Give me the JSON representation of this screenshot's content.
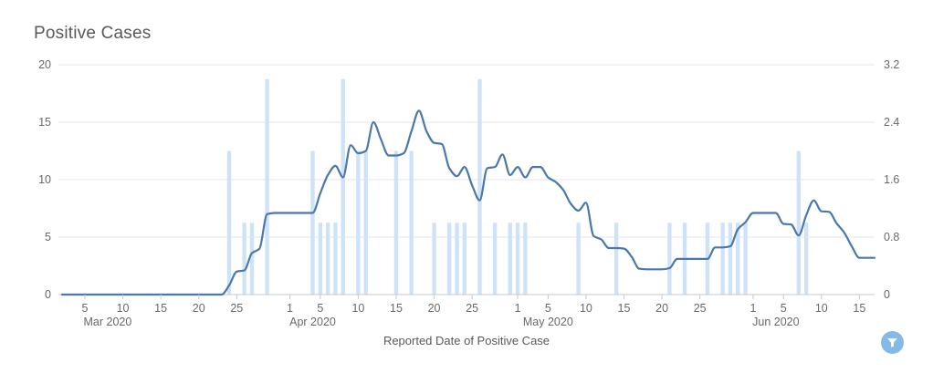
{
  "chart_data": {
    "type": "line",
    "title": "Positive Cases",
    "xlabel": "Reported Date of Positive Case",
    "x_start_date": "2020-03-02",
    "x_end_date": "2020-06-17",
    "x_frequency": "daily",
    "grid": "horizontal",
    "legend": "none",
    "left_axis": {
      "lim": [
        0,
        20
      ],
      "ticks": [
        0,
        5,
        10,
        15,
        20
      ]
    },
    "right_axis": {
      "lim": [
        0,
        3.2
      ],
      "ticks": [
        0,
        0.8,
        1.6,
        2.4,
        3.2
      ]
    },
    "x_ticks": [
      {
        "date": "2020-03-05",
        "label": "5"
      },
      {
        "date": "2020-03-10",
        "label": "10"
      },
      {
        "date": "2020-03-15",
        "label": "15"
      },
      {
        "date": "2020-03-20",
        "label": "20"
      },
      {
        "date": "2020-03-25",
        "label": "25"
      },
      {
        "date": "2020-04-01",
        "label": "1"
      },
      {
        "date": "2020-04-05",
        "label": "5"
      },
      {
        "date": "2020-04-10",
        "label": "10"
      },
      {
        "date": "2020-04-15",
        "label": "15"
      },
      {
        "date": "2020-04-20",
        "label": "20"
      },
      {
        "date": "2020-04-25",
        "label": "25"
      },
      {
        "date": "2020-05-01",
        "label": "1"
      },
      {
        "date": "2020-05-05",
        "label": "5"
      },
      {
        "date": "2020-05-10",
        "label": "10"
      },
      {
        "date": "2020-05-15",
        "label": "15"
      },
      {
        "date": "2020-05-20",
        "label": "20"
      },
      {
        "date": "2020-05-25",
        "label": "25"
      },
      {
        "date": "2020-06-01",
        "label": "1"
      },
      {
        "date": "2020-06-05",
        "label": "5"
      },
      {
        "date": "2020-06-10",
        "label": "10"
      },
      {
        "date": "2020-06-15",
        "label": "15"
      }
    ],
    "month_labels": [
      {
        "label": "Mar 2020",
        "center_date": "2020-03-08"
      },
      {
        "label": "Apr 2020",
        "center_date": "2020-04-04"
      },
      {
        "label": "May 2020",
        "center_date": "2020-05-05"
      },
      {
        "label": "Jun 2020",
        "center_date": "2020-06-04"
      }
    ],
    "series": [
      {
        "name": "positive-cases-trend-line",
        "type": "line",
        "axis": "left",
        "daily_values": [
          0,
          0,
          0,
          0,
          0,
          0,
          0,
          0,
          0,
          0,
          0,
          0,
          0,
          0,
          0,
          0,
          0,
          0,
          0,
          0,
          0,
          0,
          0.8,
          2,
          2.1,
          3.6,
          4,
          7,
          7.1,
          7.1,
          7.1,
          7.1,
          7.1,
          7.1,
          8.8,
          10.4,
          11.2,
          10.2,
          13,
          12.3,
          12.5,
          15,
          13.5,
          12.1,
          12.1,
          12.3,
          14.2,
          16,
          14.2,
          13.2,
          13.1,
          11,
          10.3,
          11.1,
          9.5,
          8.2,
          11,
          11.1,
          12.2,
          10.4,
          11.1,
          10.2,
          11.1,
          11.1,
          10.2,
          9.8,
          9.1,
          7.9,
          7.3,
          8,
          5.1,
          4.8,
          4.05,
          4.05,
          4,
          3.3,
          2.25,
          2.2,
          2.2,
          2.2,
          2.3,
          3.1,
          3.1,
          3.1,
          3.1,
          3.1,
          4.1,
          4.1,
          4.2,
          5.7,
          6.3,
          7.1,
          7.1,
          7.1,
          7.1,
          6.15,
          6.1,
          5.15,
          6.9,
          8.2,
          7.25,
          7.2,
          6.2,
          5.4,
          4.2,
          3.2,
          3.2,
          3.2
        ]
      },
      {
        "name": "daily-positive-case-bars",
        "type": "bar",
        "axis": "right",
        "points": [
          [
            "2020-03-24",
            2
          ],
          [
            "2020-03-26",
            1
          ],
          [
            "2020-03-27",
            1
          ],
          [
            "2020-03-29",
            3
          ],
          [
            "2020-04-04",
            2
          ],
          [
            "2020-04-05",
            1
          ],
          [
            "2020-04-06",
            1
          ],
          [
            "2020-04-07",
            1
          ],
          [
            "2020-04-08",
            3
          ],
          [
            "2020-04-10",
            2
          ],
          [
            "2020-04-11",
            2
          ],
          [
            "2020-04-15",
            2
          ],
          [
            "2020-04-17",
            2
          ],
          [
            "2020-04-20",
            1
          ],
          [
            "2020-04-22",
            1
          ],
          [
            "2020-04-23",
            1
          ],
          [
            "2020-04-24",
            1
          ],
          [
            "2020-04-26",
            3
          ],
          [
            "2020-04-28",
            1
          ],
          [
            "2020-04-30",
            1
          ],
          [
            "2020-05-01",
            1
          ],
          [
            "2020-05-02",
            1
          ],
          [
            "2020-05-09",
            1
          ],
          [
            "2020-05-14",
            1
          ],
          [
            "2020-05-21",
            1
          ],
          [
            "2020-05-23",
            1
          ],
          [
            "2020-05-26",
            1
          ],
          [
            "2020-05-28",
            1
          ],
          [
            "2020-05-29",
            1
          ],
          [
            "2020-05-30",
            1
          ],
          [
            "2020-05-31",
            1
          ],
          [
            "2020-06-07",
            2
          ],
          [
            "2020-06-08",
            1
          ]
        ]
      }
    ]
  },
  "colors": {
    "line": "#4a78ab",
    "bar": "#cfe3f8",
    "grid": "#e4e4e4",
    "axis_line": "#c9c9c9",
    "tick_text": "#696969",
    "title_text": "#595959",
    "filter_button_bg": "#85bae8",
    "filter_icon": "#ffffff"
  },
  "icons": {
    "filter_button": "funnel-icon"
  }
}
